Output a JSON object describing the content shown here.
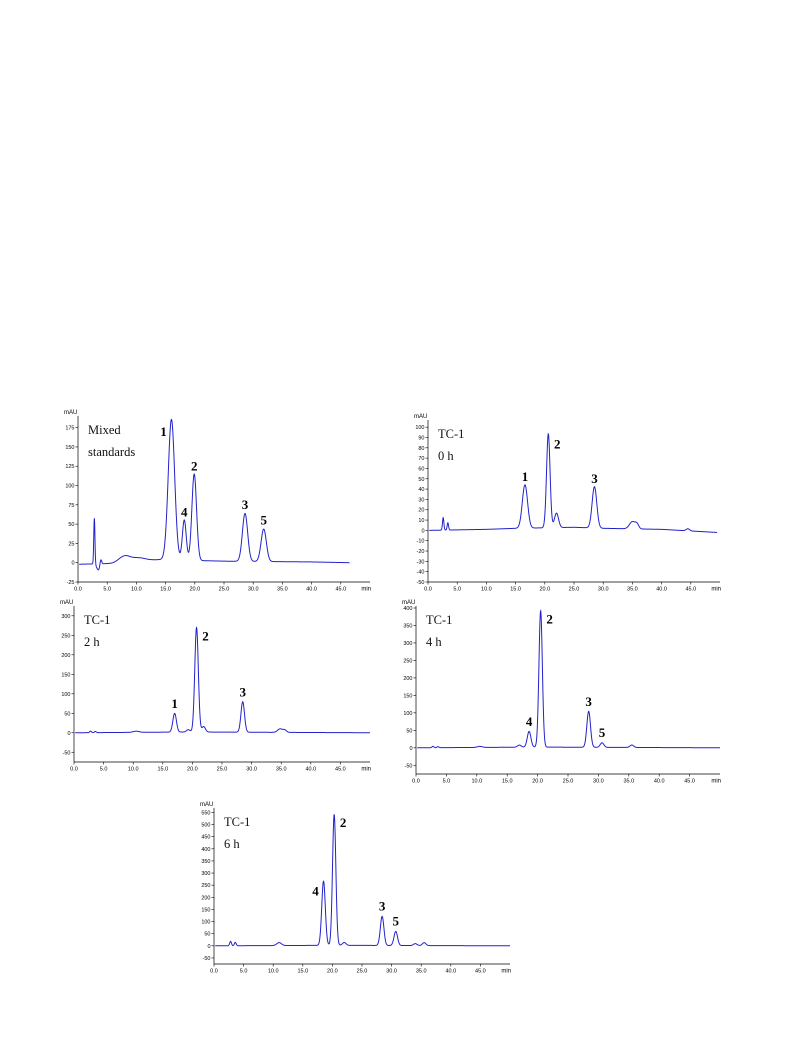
{
  "chart_data": [
    {
      "type": "line",
      "annotation": [
        "Mixed",
        "standards"
      ],
      "ylabel": "mAU",
      "xlabel": "min",
      "ylim": [
        -25,
        187.5
      ],
      "xlim": [
        0,
        50
      ],
      "yticks": [
        "-25",
        "0",
        "25",
        "50",
        "75",
        "100",
        "125",
        "150",
        "175"
      ],
      "xticks": [
        "0.0",
        "5.0",
        "10.0",
        "15.0",
        "20.0",
        "25.0",
        "30.0",
        "35.0",
        "40.0",
        "45.0"
      ],
      "color": "#2222cc",
      "trace_end": 46.5,
      "baseline": [
        [
          0,
          -2
        ],
        [
          6,
          -1
        ],
        [
          10,
          3
        ],
        [
          14,
          4
        ],
        [
          25,
          2
        ],
        [
          40,
          1
        ],
        [
          46.5,
          0
        ]
      ],
      "peaks": [
        {
          "x": 2.8,
          "h": 60,
          "w": 0.1
        },
        {
          "x": 3.5,
          "h": -8,
          "w": 0.3
        },
        {
          "x": 3.9,
          "h": 8,
          "w": 0.15
        },
        {
          "x": 8.0,
          "h": 8,
          "w": 1.0
        },
        {
          "x": 10.5,
          "h": 3,
          "w": 1.0
        },
        {
          "x": 16.0,
          "h": 182,
          "w": 0.55
        },
        {
          "x": 18.2,
          "h": 52,
          "w": 0.33
        },
        {
          "x": 19.9,
          "h": 112,
          "w": 0.4
        },
        {
          "x": 28.6,
          "h": 62,
          "w": 0.45
        },
        {
          "x": 31.8,
          "h": 42,
          "w": 0.45
        }
      ],
      "peak_labels": [
        {
          "text": "1",
          "x": 16.0,
          "y": 182,
          "side": "left"
        },
        {
          "text": "4",
          "x": 18.2,
          "y": 52,
          "side": "top"
        },
        {
          "text": "2",
          "x": 19.9,
          "y": 112,
          "side": "top"
        },
        {
          "text": "3",
          "x": 28.6,
          "y": 62,
          "side": "top"
        },
        {
          "text": "5",
          "x": 31.8,
          "y": 42,
          "side": "top"
        }
      ]
    },
    {
      "type": "line",
      "annotation": [
        "TC-1",
        "0 h"
      ],
      "ylabel": "mAU",
      "xlabel": "min",
      "ylim": [
        -50,
        105
      ],
      "xlim": [
        0,
        50
      ],
      "yticks": [
        "-50",
        "-40",
        "-30",
        "-20",
        "-10",
        "0",
        "10",
        "20",
        "30",
        "40",
        "50",
        "60",
        "70",
        "80",
        "90",
        "100"
      ],
      "xticks": [
        "0.0",
        "5.0",
        "10.0",
        "15.0",
        "20.0",
        "25.0",
        "30.0",
        "35.0",
        "40.0",
        "45.0"
      ],
      "color": "#2222cc",
      "trace_end": 49.5,
      "baseline": [
        [
          0,
          0
        ],
        [
          10,
          1
        ],
        [
          15,
          2
        ],
        [
          25,
          3
        ],
        [
          30,
          2
        ],
        [
          40,
          1
        ],
        [
          49.5,
          -2
        ]
      ],
      "peaks": [
        {
          "x": 2.6,
          "h": 12,
          "w": 0.12
        },
        {
          "x": 3.4,
          "h": 7,
          "w": 0.12
        },
        {
          "x": 16.6,
          "h": 42,
          "w": 0.45
        },
        {
          "x": 20.6,
          "h": 91,
          "w": 0.3
        },
        {
          "x": 22.0,
          "h": 14,
          "w": 0.35
        },
        {
          "x": 28.5,
          "h": 40,
          "w": 0.4
        },
        {
          "x": 35.0,
          "h": 7,
          "w": 0.5
        },
        {
          "x": 35.8,
          "h": 4,
          "w": 0.3
        },
        {
          "x": 44.5,
          "h": 2,
          "w": 0.3
        }
      ],
      "peak_labels": [
        {
          "text": "1",
          "x": 16.6,
          "y": 42,
          "side": "top"
        },
        {
          "text": "2",
          "x": 20.6,
          "y": 91,
          "side": "right"
        },
        {
          "text": "3",
          "x": 28.5,
          "y": 40,
          "side": "top"
        }
      ]
    },
    {
      "type": "line",
      "annotation": [
        "TC-1",
        "2 h"
      ],
      "ylabel": "mAU",
      "xlabel": "min",
      "ylim": [
        -75,
        320
      ],
      "xlim": [
        0,
        50
      ],
      "yticks": [
        "-50",
        "0",
        "50",
        "100",
        "150",
        "200",
        "250",
        "300"
      ],
      "xticks": [
        "0.0",
        "5.0",
        "10.0",
        "15.0",
        "20.0",
        "25.0",
        "30.0",
        "35.0",
        "40.0",
        "45.0"
      ],
      "color": "#2222cc",
      "trace_end": 50,
      "baseline": [
        [
          0,
          0
        ],
        [
          20,
          2
        ],
        [
          50,
          0
        ]
      ],
      "peaks": [
        {
          "x": 2.8,
          "h": 4,
          "w": 0.15
        },
        {
          "x": 3.6,
          "h": 3,
          "w": 0.15
        },
        {
          "x": 10.5,
          "h": 3,
          "w": 0.5
        },
        {
          "x": 17.0,
          "h": 48,
          "w": 0.3
        },
        {
          "x": 19.3,
          "h": 6,
          "w": 0.3
        },
        {
          "x": 20.7,
          "h": 268,
          "w": 0.3
        },
        {
          "x": 21.9,
          "h": 14,
          "w": 0.3
        },
        {
          "x": 28.5,
          "h": 78,
          "w": 0.3
        },
        {
          "x": 34.8,
          "h": 9,
          "w": 0.4
        },
        {
          "x": 35.6,
          "h": 6,
          "w": 0.3
        }
      ],
      "peak_labels": [
        {
          "text": "1",
          "x": 17.0,
          "y": 48,
          "side": "top"
        },
        {
          "text": "2",
          "x": 20.7,
          "y": 268,
          "side": "right"
        },
        {
          "text": "3",
          "x": 28.5,
          "y": 78,
          "side": "top"
        }
      ]
    },
    {
      "type": "line",
      "annotation": [
        "TC-1",
        "4 h"
      ],
      "ylabel": "mAU",
      "xlabel": "min",
      "ylim": [
        -75,
        400
      ],
      "xlim": [
        0,
        50
      ],
      "yticks": [
        "-50",
        "0",
        "50",
        "100",
        "150",
        "200",
        "250",
        "300",
        "350",
        "400"
      ],
      "xticks": [
        "0.0",
        "5.0",
        "10.0",
        "15.0",
        "20.0",
        "25.0",
        "30.0",
        "35.0",
        "40.0",
        "45.0"
      ],
      "color": "#2222cc",
      "trace_end": 50,
      "baseline": [
        [
          0,
          0
        ],
        [
          20,
          2
        ],
        [
          50,
          0
        ]
      ],
      "peaks": [
        {
          "x": 2.8,
          "h": 4,
          "w": 0.15
        },
        {
          "x": 3.6,
          "h": 3,
          "w": 0.15
        },
        {
          "x": 10.5,
          "h": 3,
          "w": 0.4
        },
        {
          "x": 17.0,
          "h": 6,
          "w": 0.3
        },
        {
          "x": 18.6,
          "h": 45,
          "w": 0.3
        },
        {
          "x": 20.5,
          "h": 390,
          "w": 0.28
        },
        {
          "x": 28.4,
          "h": 103,
          "w": 0.3
        },
        {
          "x": 30.6,
          "h": 13,
          "w": 0.3
        },
        {
          "x": 35.5,
          "h": 7,
          "w": 0.3
        }
      ],
      "peak_labels": [
        {
          "text": "4",
          "x": 18.6,
          "y": 45,
          "side": "top"
        },
        {
          "text": "2",
          "x": 20.5,
          "y": 390,
          "side": "right"
        },
        {
          "text": "3",
          "x": 28.4,
          "y": 103,
          "side": "top"
        },
        {
          "text": "5",
          "x": 30.6,
          "y": 13,
          "side": "top"
        }
      ]
    },
    {
      "type": "line",
      "annotation": [
        "TC-1",
        "6 h"
      ],
      "ylabel": "mAU",
      "xlabel": "min",
      "ylim": [
        -75,
        560
      ],
      "xlim": [
        0,
        50
      ],
      "yticks": [
        "-50",
        "0",
        "50",
        "100",
        "150",
        "200",
        "250",
        "300",
        "350",
        "400",
        "450",
        "500",
        "550"
      ],
      "xticks": [
        "0.0",
        "5.0",
        "10.0",
        "15.0",
        "20.0",
        "25.0",
        "30.0",
        "35.0",
        "40.0",
        "45.0"
      ],
      "color": "#2222cc",
      "trace_end": 50,
      "baseline": [
        [
          0,
          0
        ],
        [
          20,
          2
        ],
        [
          50,
          0
        ]
      ],
      "peaks": [
        {
          "x": 2.8,
          "h": 18,
          "w": 0.15
        },
        {
          "x": 3.6,
          "h": 14,
          "w": 0.15
        },
        {
          "x": 11.0,
          "h": 12,
          "w": 0.4
        },
        {
          "x": 18.5,
          "h": 265,
          "w": 0.3
        },
        {
          "x": 20.3,
          "h": 540,
          "w": 0.28
        },
        {
          "x": 22.0,
          "h": 12,
          "w": 0.3
        },
        {
          "x": 28.4,
          "h": 120,
          "w": 0.3
        },
        {
          "x": 30.7,
          "h": 58,
          "w": 0.3
        },
        {
          "x": 34.0,
          "h": 8,
          "w": 0.3
        },
        {
          "x": 35.5,
          "h": 12,
          "w": 0.3
        }
      ],
      "peak_labels": [
        {
          "text": "4",
          "x": 18.5,
          "y": 265,
          "side": "left"
        },
        {
          "text": "2",
          "x": 20.3,
          "y": 540,
          "side": "right"
        },
        {
          "text": "3",
          "x": 28.4,
          "y": 120,
          "side": "top"
        },
        {
          "text": "5",
          "x": 30.7,
          "y": 58,
          "side": "top"
        }
      ]
    }
  ]
}
